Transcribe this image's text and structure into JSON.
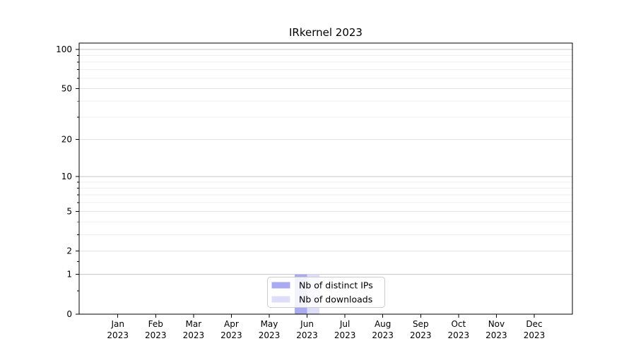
{
  "figure": {
    "title": "IRkernel 2023"
  },
  "chart_data": {
    "type": "bar",
    "title": "IRkernel 2023",
    "months": [
      "Jan",
      "Feb",
      "Mar",
      "Apr",
      "May",
      "Jun",
      "Jul",
      "Aug",
      "Sep",
      "Oct",
      "Nov",
      "Dec"
    ],
    "year": "2023",
    "categories": [
      "Jan 2023",
      "Feb 2023",
      "Mar 2023",
      "Apr 2023",
      "May 2023",
      "Jun 2023",
      "Jul 2023",
      "Aug 2023",
      "Sep 2023",
      "Oct 2023",
      "Nov 2023",
      "Dec 2023"
    ],
    "series": [
      {
        "name": "Nb of distinct IPs",
        "color": "#aaaaf0",
        "values": [
          0,
          0,
          0,
          0,
          0,
          1,
          0,
          0,
          0,
          0,
          0,
          0
        ]
      },
      {
        "name": "Nb of downloads",
        "color": "#dedef8",
        "values": [
          0,
          0,
          0,
          0,
          0,
          1,
          0,
          0,
          0,
          0,
          0,
          0
        ]
      }
    ],
    "y_axis": {
      "scale": "log1p",
      "ticks": [
        0,
        1,
        2,
        5,
        10,
        20,
        50,
        100
      ],
      "minor_ticks": [
        0.5,
        1.5,
        3,
        4,
        6,
        7,
        8,
        9,
        30,
        40,
        60,
        70,
        80,
        90
      ],
      "ylim": [
        0,
        112
      ]
    },
    "grid": "both",
    "legend": {
      "position": "lower center",
      "entries": [
        "Nb of distinct IPs",
        "Nb of downloads"
      ]
    }
  }
}
